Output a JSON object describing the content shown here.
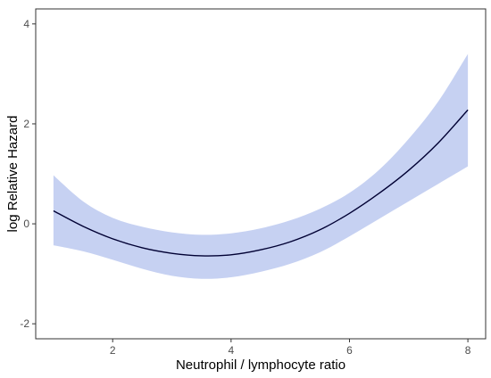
{
  "chart_data": {
    "type": "line",
    "title": "",
    "xlabel": "Neutrophil / lymphocyte ratio",
    "ylabel": "log Relative Hazard",
    "xlim": [
      0.7,
      8.3
    ],
    "ylim": [
      -2.3,
      4.3
    ],
    "x_ticks": [
      2,
      4,
      6,
      8
    ],
    "y_ticks": [
      -2,
      0,
      2,
      4
    ],
    "grid": false,
    "legend": "none",
    "colors": {
      "line": "#000033",
      "band": "#c6d1f2",
      "frame": "#333333"
    },
    "series": [
      {
        "type": "line",
        "x": [
          1,
          1.5,
          2,
          2.5,
          3,
          3.5,
          4,
          4.5,
          5,
          5.5,
          6,
          6.5,
          7,
          7.5,
          8
        ],
        "y": [
          0.26,
          -0.05,
          -0.3,
          -0.48,
          -0.59,
          -0.64,
          -0.62,
          -0.52,
          -0.36,
          -0.12,
          0.21,
          0.61,
          1.07,
          1.62,
          2.28
        ]
      },
      {
        "type": "band",
        "x": [
          1,
          1.5,
          2,
          2.5,
          3,
          3.5,
          4,
          4.5,
          5,
          5.5,
          6,
          6.5,
          7,
          7.5,
          8
        ],
        "lower": [
          -0.43,
          -0.55,
          -0.72,
          -0.9,
          -1.04,
          -1.1,
          -1.07,
          -0.96,
          -0.8,
          -0.57,
          -0.25,
          0.1,
          0.45,
          0.8,
          1.15
        ],
        "upper": [
          0.97,
          0.45,
          0.12,
          -0.06,
          -0.17,
          -0.22,
          -0.19,
          -0.09,
          0.07,
          0.3,
          0.62,
          1.08,
          1.7,
          2.45,
          3.4
        ]
      }
    ]
  }
}
